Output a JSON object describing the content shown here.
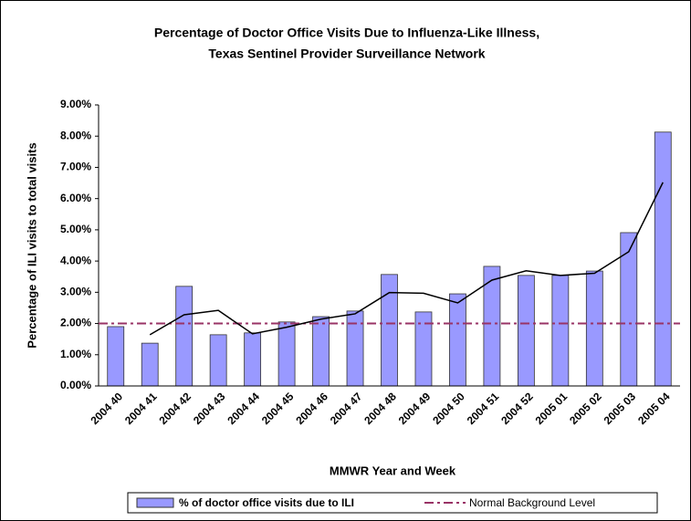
{
  "chart_data": {
    "type": "bar",
    "title": "Percentage of Doctor Office Visits Due to Influenza-Like Illness,",
    "subtitle": "Texas Sentinel Provider Surveillance Network",
    "x_label": "MMWR Year and Week",
    "y_label": "Percentage of ILI visits to total visits",
    "categories": [
      "2004 40",
      "2004 41",
      "2004 42",
      "2004 43",
      "2004 44",
      "2004 45",
      "2004 46",
      "2004 47",
      "2004 48",
      "2004 49",
      "2004 50",
      "2004 51",
      "2004 52",
      "2005 01",
      "2005 02",
      "2005 03",
      "2005 04"
    ],
    "series": [
      {
        "name": "% of doctor office visits due to ILI",
        "color": "#9999ff",
        "values": [
          1.9,
          1.37,
          3.19,
          1.64,
          1.7,
          2.05,
          2.22,
          2.4,
          3.57,
          2.37,
          2.95,
          3.83,
          3.54,
          3.54,
          3.68,
          4.91,
          8.13
        ]
      }
    ],
    "trend": {
      "color": "#000000",
      "values": [
        null,
        1.64,
        2.28,
        2.42,
        1.67,
        1.88,
        2.14,
        2.31,
        2.99,
        2.97,
        2.66,
        3.39,
        3.69,
        3.54,
        3.61,
        4.3,
        6.52
      ]
    },
    "baseline": {
      "name": "Normal Background Level",
      "color": "#993366",
      "value": 2
    },
    "ylim": [
      0,
      9
    ],
    "yticks": [
      {
        "value": 0,
        "label": "0.00%"
      },
      {
        "value": 1,
        "label": "1.00%"
      },
      {
        "value": 2,
        "label": "2.00%"
      },
      {
        "value": 3,
        "label": "3.00%"
      },
      {
        "value": 4,
        "label": "4.00%"
      },
      {
        "value": 5,
        "label": "5.00%"
      },
      {
        "value": 6,
        "label": "6.00%"
      },
      {
        "value": 7,
        "label": "7.00%"
      },
      {
        "value": 8,
        "label": "8.00%"
      },
      {
        "value": 9,
        "label": "9.00%"
      }
    ],
    "legend": "bottom"
  }
}
